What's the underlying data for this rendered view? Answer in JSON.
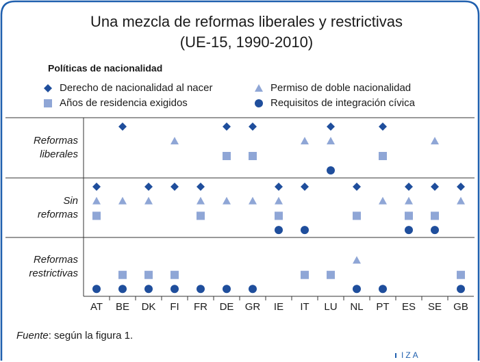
{
  "chart_data": {
    "type": "category-matrix",
    "title": "Una mezcla de reformas liberales y restrictivas",
    "subtitle": "(UE-15, 1990-2010)",
    "legend_title": "Políticas de nacionalidad",
    "categories": [
      "AT",
      "BE",
      "DK",
      "FI",
      "FR",
      "DE",
      "GR",
      "IE",
      "IT",
      "LU",
      "NL",
      "PT",
      "ES",
      "SE",
      "GB"
    ],
    "y_categories": [
      "Reformas liberales",
      "Sin reformas",
      "Reformas restrictivas"
    ],
    "series": [
      {
        "name": "Derecho de nacionalidad al nacer",
        "color": "#1f4e9c",
        "marker": "diamond",
        "values": [
          "Sin reformas",
          "Reformas liberales",
          "Sin reformas",
          "Sin reformas",
          "Sin reformas",
          "Reformas liberales",
          "Reformas liberales",
          "Sin reformas",
          "Sin reformas",
          "Reformas liberales",
          "Sin reformas",
          "Reformas liberales",
          "Sin reformas",
          "Sin reformas",
          "Sin reformas"
        ]
      },
      {
        "name": "Permiso de doble nacionalidad",
        "color": "#8fa6d6",
        "marker": "triangle",
        "values": [
          "Sin reformas",
          "Sin reformas",
          "Sin reformas",
          "Reformas liberales",
          "Sin reformas",
          "Sin reformas",
          "Sin reformas",
          "Sin reformas",
          "Reformas liberales",
          "Reformas liberales",
          "Reformas restrictivas",
          "Sin reformas",
          "Sin reformas",
          "Reformas liberales",
          "Sin reformas"
        ]
      },
      {
        "name": "Años de residencia exigidos",
        "color": "#8fa6d6",
        "marker": "square",
        "values": [
          "Sin reformas",
          "Reformas restrictivas",
          "Reformas restrictivas",
          "Reformas restrictivas",
          "Sin reformas",
          "Reformas liberales",
          "Reformas liberales",
          "Sin reformas",
          "Reformas restrictivas",
          "Reformas restrictivas",
          "Sin reformas",
          "Reformas liberales",
          "Sin reformas",
          "Sin reformas",
          "Reformas restrictivas"
        ]
      },
      {
        "name": "Requisitos de integración cívica",
        "color": "#1f4e9c",
        "marker": "circle",
        "values": [
          "Reformas restrictivas",
          "Reformas restrictivas",
          "Reformas restrictivas",
          "Reformas restrictivas",
          "Reformas restrictivas",
          "Reformas restrictivas",
          "Reformas restrictivas",
          "Sin reformas",
          "Sin reformas",
          "Reformas liberales",
          "Reformas restrictivas",
          "Reformas restrictivas",
          "Sin reformas",
          "Sin reformas",
          "Reformas restrictivas"
        ]
      }
    ],
    "source_label": "Fuente",
    "source_text": ": según la figura 1.",
    "logo": "IZA"
  }
}
